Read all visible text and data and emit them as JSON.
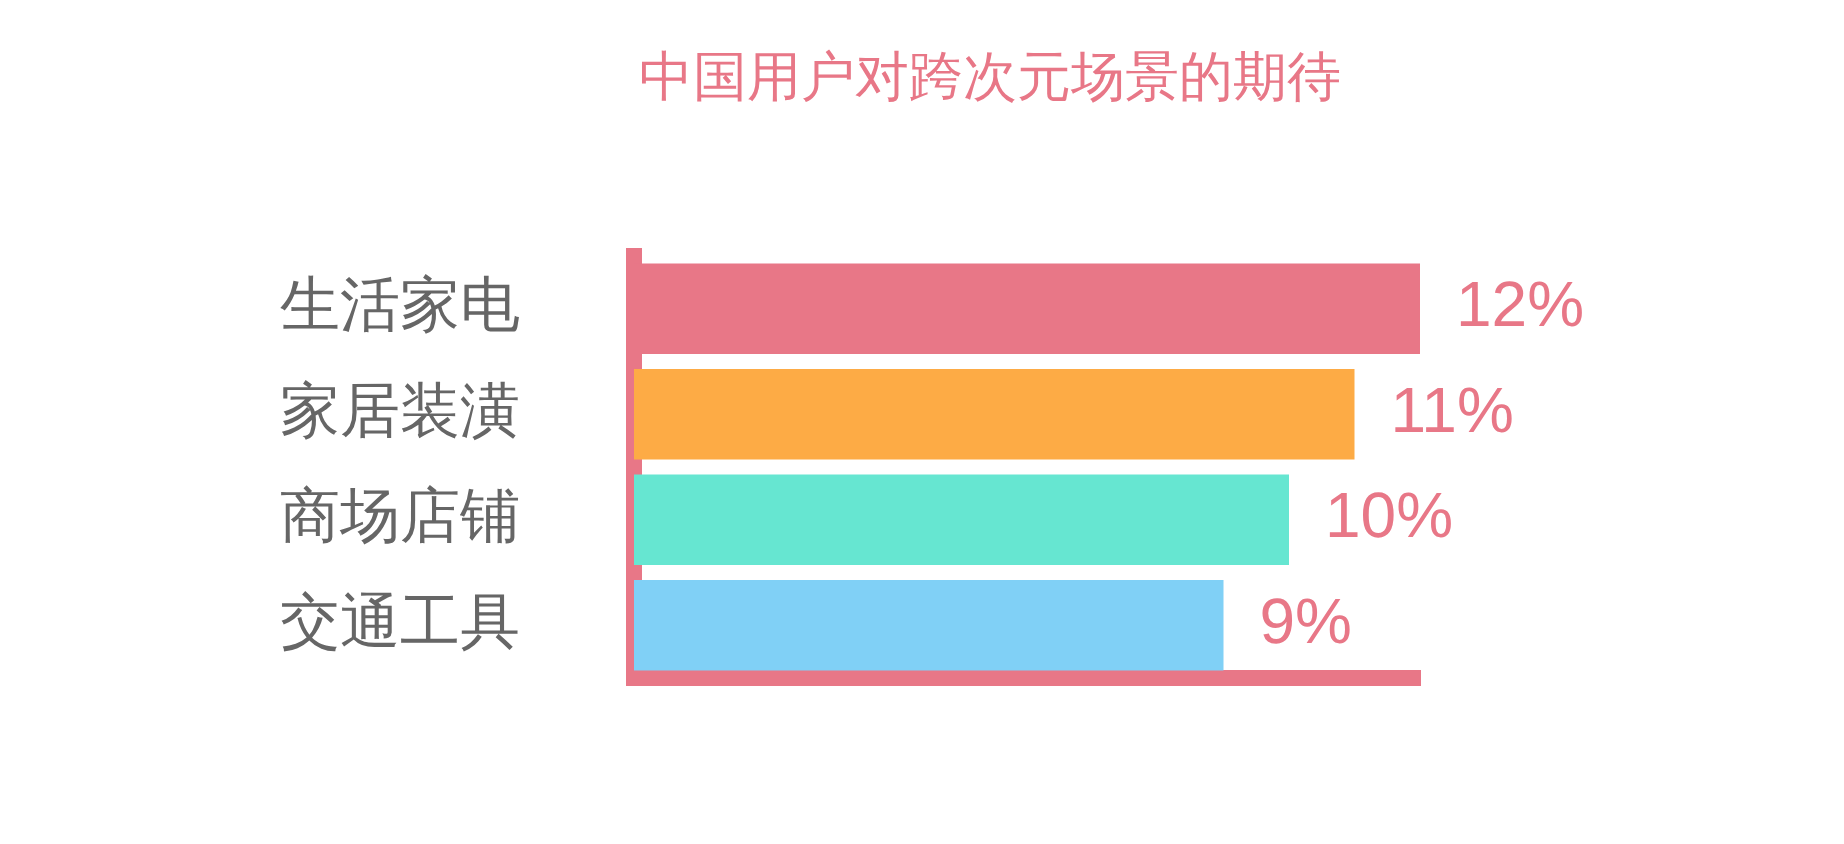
{
  "chart_data": {
    "type": "bar",
    "orientation": "horizontal",
    "title": "中国用户对跨次元场景的期待",
    "categories": [
      "生活家电",
      "家居装潢",
      "商场店铺",
      "交通工具"
    ],
    "values": [
      12,
      11,
      10,
      9
    ],
    "colors": [
      "#e87787",
      "#fdab45",
      "#66e6d1",
      "#80d0f6"
    ],
    "value_labels": [
      "12%",
      "11%",
      "10%",
      "9%"
    ],
    "tick_labels": "y",
    "grid": false,
    "legend": false
  }
}
